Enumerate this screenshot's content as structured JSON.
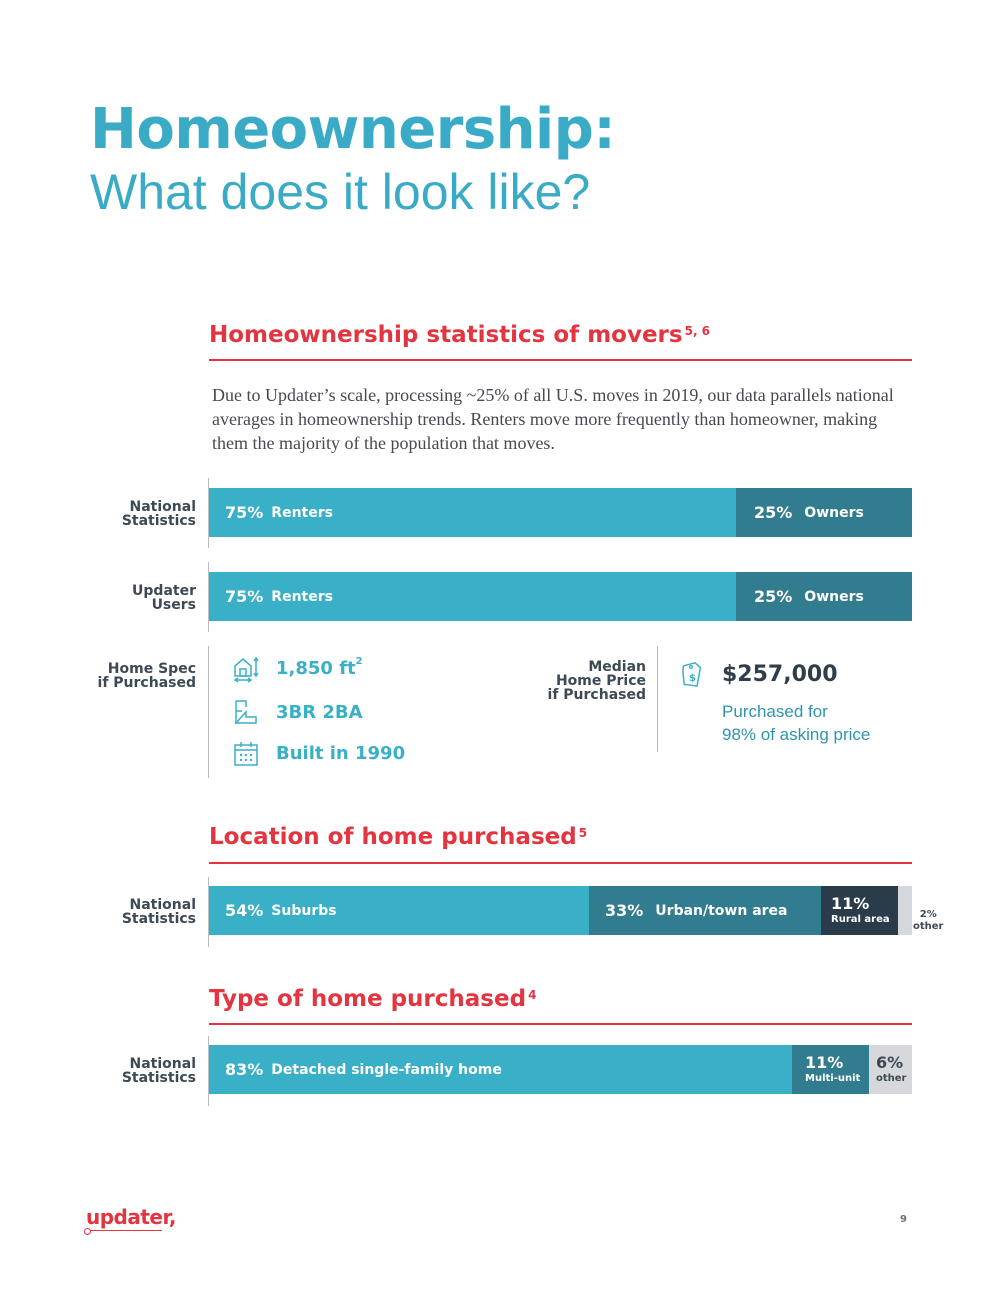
{
  "title": {
    "bold": "Homeownership:",
    "light": "What does it look like?"
  },
  "section1": {
    "heading": "Homeownership statistics of movers",
    "heading_sup": "5, 6",
    "intro": "Due to Updater’s scale, processing ~25% of all U.S. moves in 2019, our data parallels national averages in homeownership trends. Renters move more frequently than homeowner, making them the majority of the population that moves."
  },
  "national_bar": {
    "label_line1": "National",
    "label_line2": "Statistics",
    "segments": [
      {
        "pct": "75%",
        "label": "Renters",
        "value": 75
      },
      {
        "pct": "25%",
        "label": "Owners",
        "value": 25
      }
    ]
  },
  "updater_bar": {
    "label_line1": "Updater",
    "label_line2": "Users",
    "segments": [
      {
        "pct": "75%",
        "label": "Renters",
        "value": 75
      },
      {
        "pct": "25%",
        "label": "Owners",
        "value": 25
      }
    ]
  },
  "home_spec": {
    "label_line1": "Home Spec",
    "label_line2": "if Purchased",
    "size": "1,850 ft",
    "size_sup": "2",
    "rooms": "3BR 2BA",
    "built": "Built in 1990",
    "icons": [
      "house-size-icon",
      "floorplan-icon",
      "calendar-icon"
    ]
  },
  "median_price": {
    "label_line1": "Median",
    "label_line2": "Home Price",
    "label_line3": "if Purchased",
    "price": "$257,000",
    "note_line1": "Purchased for",
    "note_line2": "98% of asking price",
    "icon": "price-tag-icon"
  },
  "section2": {
    "heading": "Location of home purchased",
    "heading_sup": "5"
  },
  "location_bar": {
    "label_line1": "National",
    "label_line2": "Statistics",
    "segments": [
      {
        "pct": "54%",
        "label": "Suburbs",
        "value": 54
      },
      {
        "pct": "33%",
        "label": "Urban/town area",
        "value": 33
      },
      {
        "pct": "11%",
        "label": "Rural area",
        "value": 11
      },
      {
        "pct": "2%",
        "label": "other",
        "value": 2
      }
    ]
  },
  "section3": {
    "heading": "Type of home purchased",
    "heading_sup": "4"
  },
  "type_bar": {
    "label_line1": "National",
    "label_line2": "Statistics",
    "segments": [
      {
        "pct": "83%",
        "label": "Detached single-family home",
        "value": 83
      },
      {
        "pct": "11%",
        "label": "Multi-unit",
        "value": 11
      },
      {
        "pct": "6%",
        "label": "other",
        "value": 6
      }
    ]
  },
  "footer": {
    "logo": "updater",
    "page_number": "9"
  },
  "colors": {
    "accent_red": "#e33440",
    "teal_light": "#3ab0c8",
    "teal_dark": "#327c90",
    "navy": "#2a3c4a",
    "gray": "#d6d8db"
  }
}
